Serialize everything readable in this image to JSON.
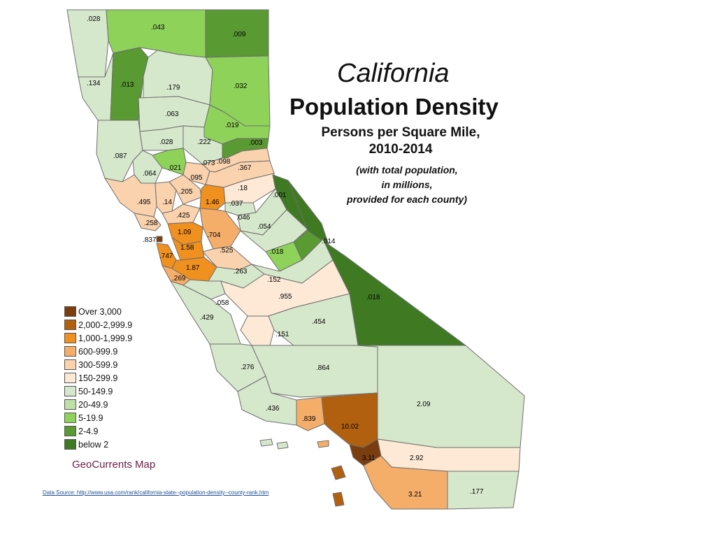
{
  "title": {
    "line1": "California",
    "line2": "Population Density",
    "line3a": "Persons per Square Mile,",
    "line3b": "2010-2014",
    "note1": "(with total population,",
    "note2": "in millions,",
    "note3": "provided for each county)"
  },
  "legend": [
    {
      "label": "Over 3,000",
      "color": "#7a3d0f"
    },
    {
      "label": "2,000-2,999.9",
      "color": "#b0600f"
    },
    {
      "label": "1,000-1,999.9",
      "color": "#f0901e"
    },
    {
      "label": "600-999.9",
      "color": "#f5ae6a"
    },
    {
      "label": "300-599.9",
      "color": "#fad2ad"
    },
    {
      "label": "150-299.9",
      "color": "#fde9d5"
    },
    {
      "label": "50-149.9",
      "color": "#d6e8cc"
    },
    {
      "label": "20-49.9",
      "color": "#bfe0a8"
    },
    {
      "label": "5-19.9",
      "color": "#8fd25a"
    },
    {
      "label": "2-4.9",
      "color": "#5a9a32"
    },
    {
      "label": "below 2",
      "color": "#3f7a22"
    }
  ],
  "credit": "GeoCurrents Map",
  "source": "Data Source: http://www.usa.com/rank/california-state--population-density--county-rank.htm",
  "county_labels": [
    ".028",
    ".043",
    ".009",
    ".134",
    ".013",
    ".179",
    ".032",
    ".063",
    ".019",
    ".222",
    ".003",
    ".028",
    ".087",
    ".073",
    ".098",
    ".367",
    ".021",
    ".064",
    ".095",
    ".18",
    ".205",
    ".001",
    ".495",
    ".14",
    "1.46",
    ".037",
    ".046",
    ".425",
    ".054",
    ".258",
    "1.09",
    ".704",
    ".014",
    ".837",
    "1.58",
    ".525",
    ".018",
    ".747",
    "1.87",
    ".263",
    ".269",
    ".152",
    ".955",
    ".018",
    ".058",
    ".429",
    ".454",
    ".151",
    ".276",
    ".864",
    ".436",
    "2.09",
    ".839",
    "10.02",
    "3.11",
    "2.92",
    "3.21",
    ".177"
  ]
}
